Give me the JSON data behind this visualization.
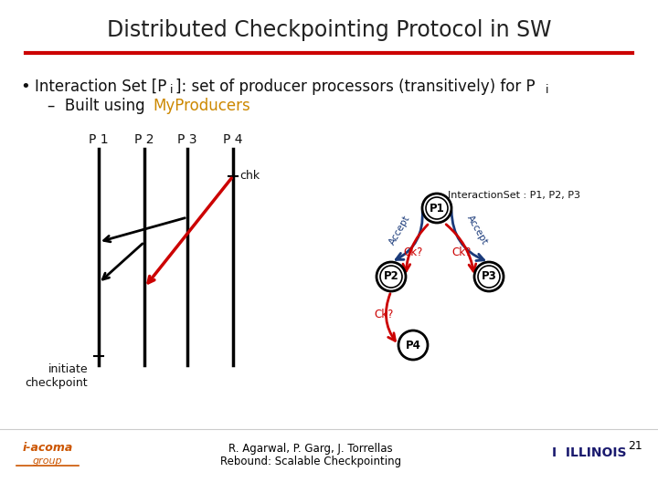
{
  "title": "Distributed Checkpointing Protocol in SW",
  "highlight_color": "#cc8800",
  "red_line_color": "#cc0000",
  "dark_navy": "#1a3a7a",
  "slide_num": "21",
  "footer_text1": "R. Agarwal, P. Garg, J. Torrellas",
  "footer_text2": "Rebound: Scalable Checkpointing",
  "bg_color": "#ffffff",
  "title_color": "#222222",
  "body_color": "#111111",
  "MyProducers": "MyProducers",
  "interaction_set_label": "InteractionSet : P1, P2, P3"
}
